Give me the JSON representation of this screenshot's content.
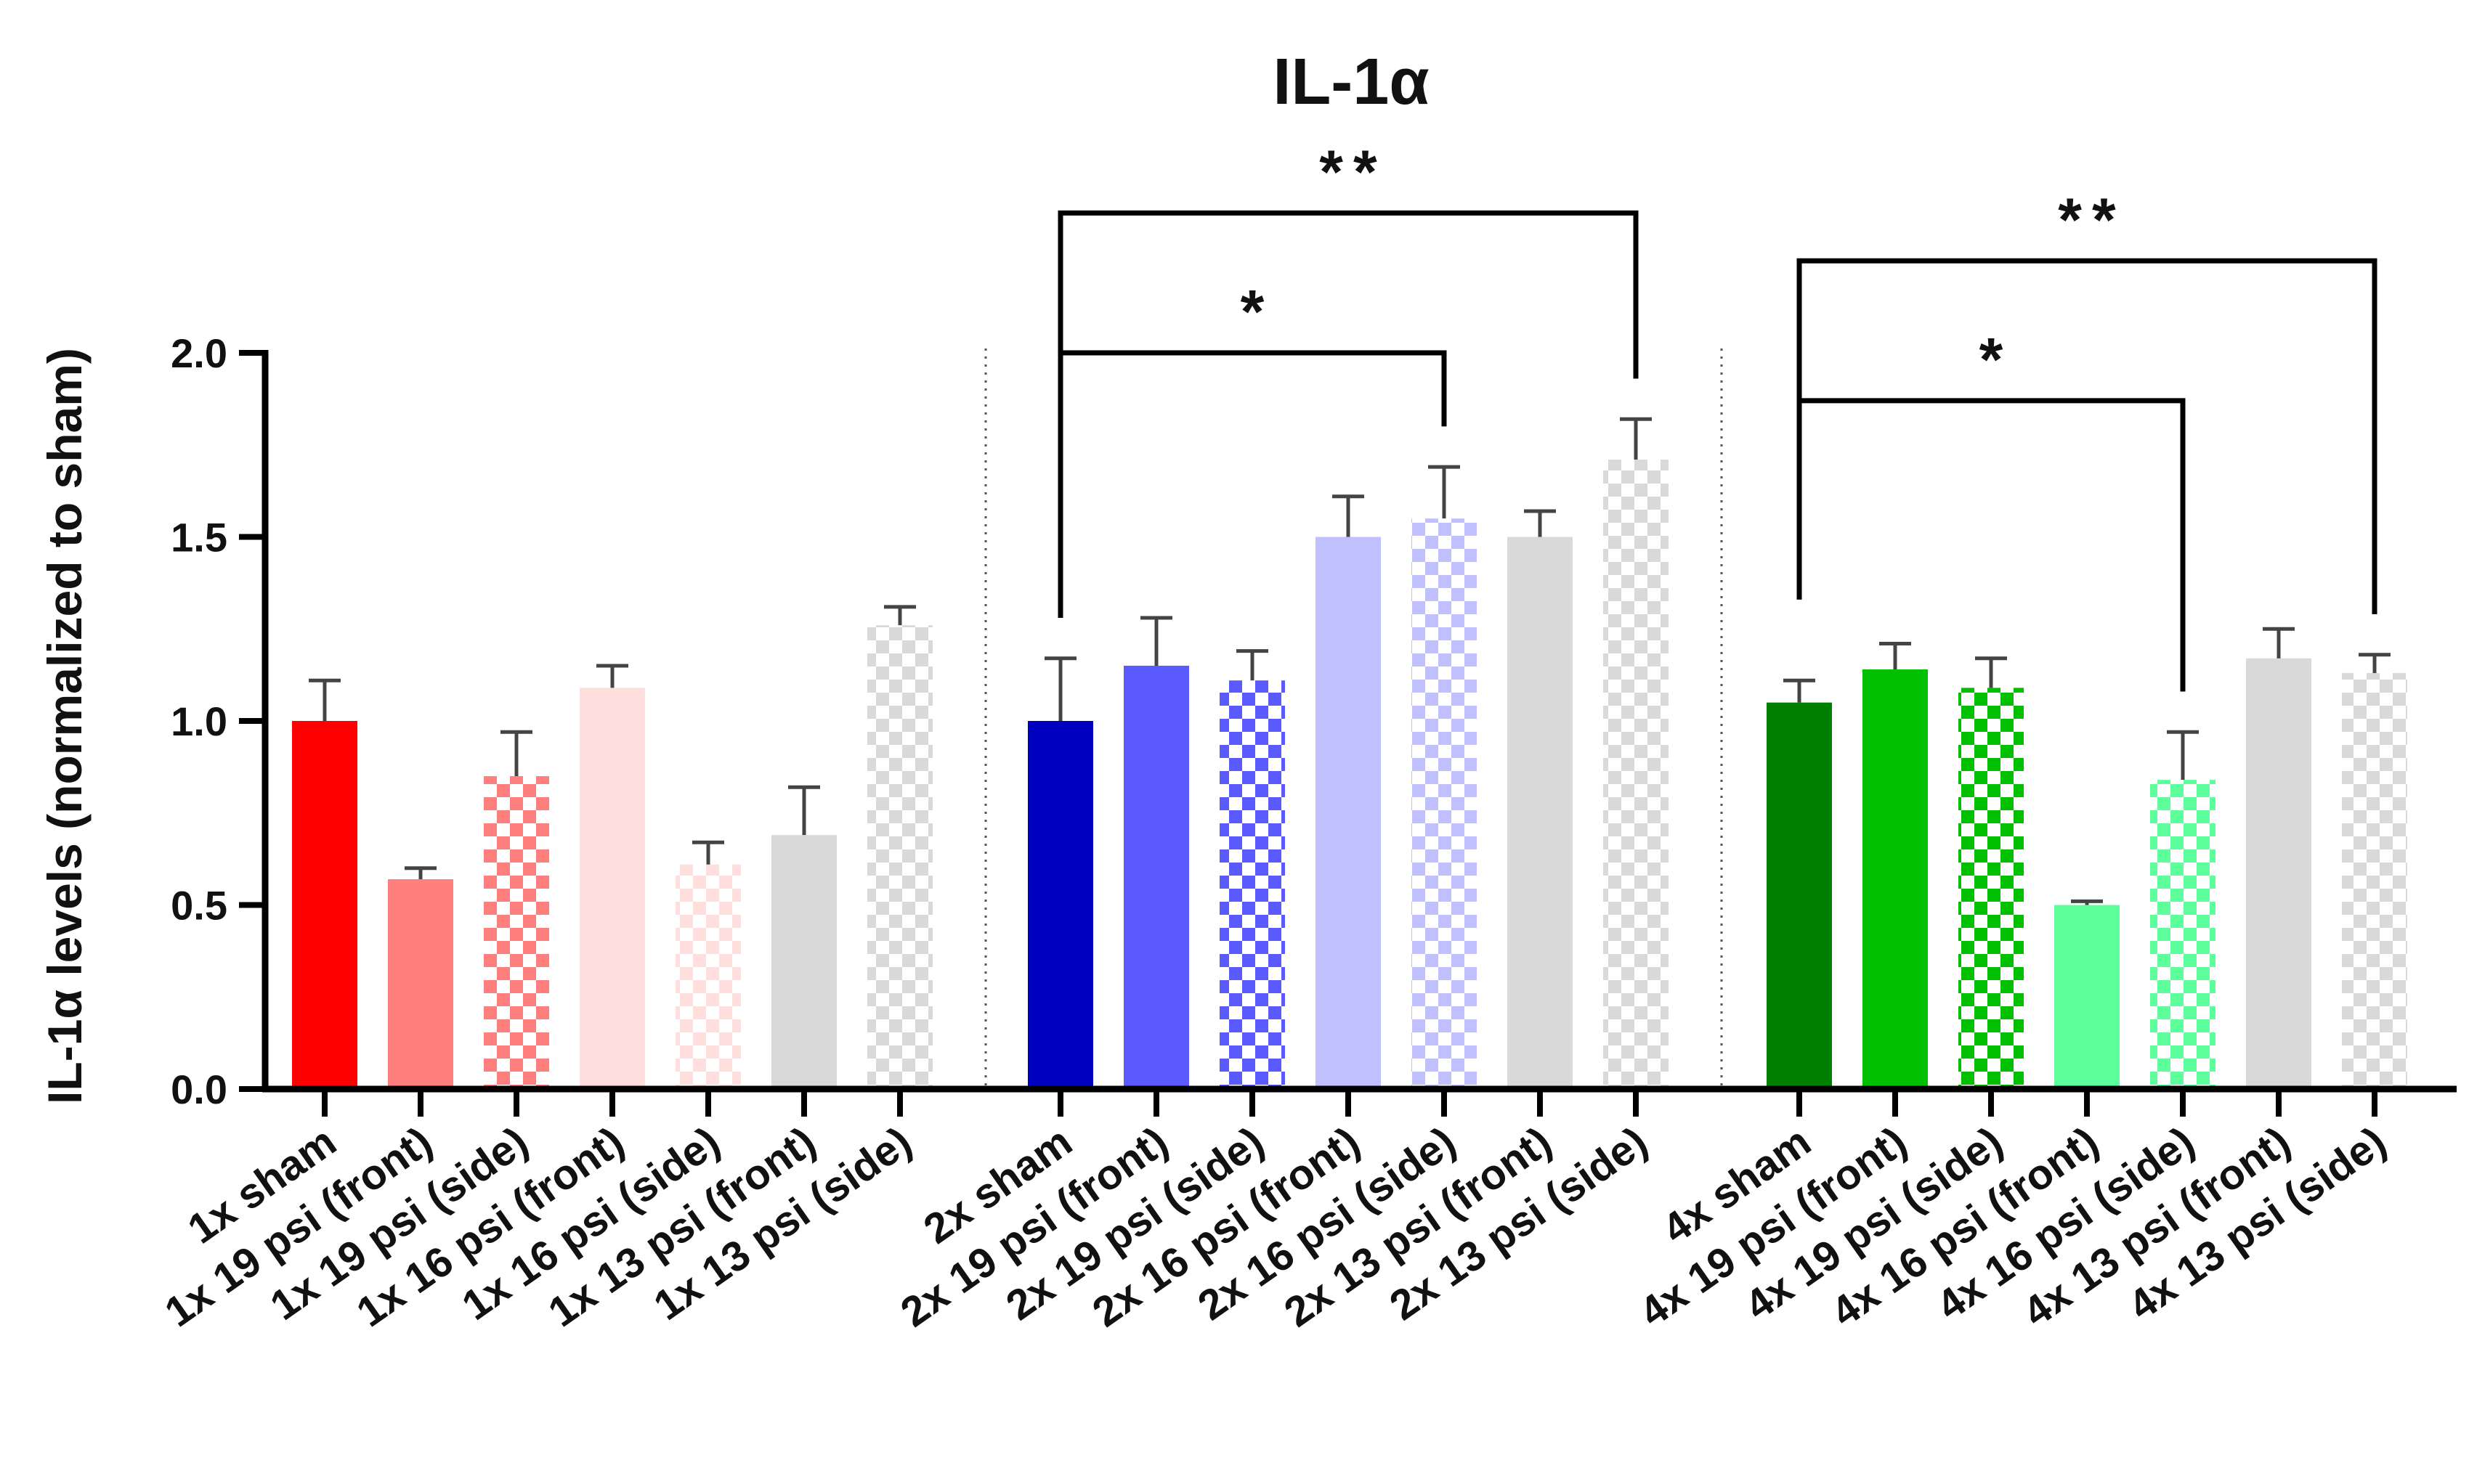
{
  "chart_data": {
    "type": "bar",
    "title": "IL-1α",
    "xlabel": "",
    "ylabel": "IL-1α levels (normalized to sham)",
    "ylim": [
      0,
      2.0
    ],
    "yticks": [
      0.0,
      0.5,
      1.0,
      1.5,
      2.0
    ],
    "ytick_labels": [
      "0.0",
      "0.5",
      "1.0",
      "1.5",
      "2.0"
    ],
    "grid": false,
    "groups": [
      {
        "name": "1x",
        "bars": [
          {
            "label": "1x sham",
            "value": 1.0,
            "error": 0.11,
            "color": "#ff0000",
            "pattern": "solid"
          },
          {
            "label": "1x 19 psi (front)",
            "value": 0.57,
            "error": 0.03,
            "color": "#ff7f7f",
            "pattern": "solid"
          },
          {
            "label": "1x 19 psi (side)",
            "value": 0.85,
            "error": 0.12,
            "color": "#ff7f7f",
            "pattern": "checker"
          },
          {
            "label": "1x 16 psi (front)",
            "value": 1.09,
            "error": 0.06,
            "color": "#ffdede",
            "pattern": "solid"
          },
          {
            "label": "1x 16 psi (side)",
            "value": 0.61,
            "error": 0.06,
            "color": "#ffdede",
            "pattern": "checker"
          },
          {
            "label": "1x 13 psi (front)",
            "value": 0.69,
            "error": 0.13,
            "color": "#d9d9d9",
            "pattern": "solid"
          },
          {
            "label": "1x 13 psi (side)",
            "value": 1.26,
            "error": 0.05,
            "color": "#d9d9d9",
            "pattern": "checker"
          }
        ]
      },
      {
        "name": "2x",
        "bars": [
          {
            "label": "2x sham",
            "value": 1.0,
            "error": 0.17,
            "color": "#0000c0",
            "pattern": "solid"
          },
          {
            "label": "2x 19 psi (front)",
            "value": 1.15,
            "error": 0.13,
            "color": "#5a5aff",
            "pattern": "solid"
          },
          {
            "label": "2x 19 psi (side)",
            "value": 1.11,
            "error": 0.08,
            "color": "#5a5aff",
            "pattern": "checker"
          },
          {
            "label": "2x 16 psi (front)",
            "value": 1.5,
            "error": 0.11,
            "color": "#c0c0ff",
            "pattern": "solid"
          },
          {
            "label": "2x 16 psi (side)",
            "value": 1.55,
            "error": 0.14,
            "color": "#c0c0ff",
            "pattern": "checker"
          },
          {
            "label": "2x 13 psi (front)",
            "value": 1.5,
            "error": 0.07,
            "color": "#d9d9d9",
            "pattern": "solid"
          },
          {
            "label": "2x 13 psi (side)",
            "value": 1.71,
            "error": 0.11,
            "color": "#d9d9d9",
            "pattern": "checker"
          }
        ]
      },
      {
        "name": "4x",
        "bars": [
          {
            "label": "4x sham",
            "value": 1.05,
            "error": 0.06,
            "color": "#008000",
            "pattern": "solid"
          },
          {
            "label": "4x 19 psi (front)",
            "value": 1.14,
            "error": 0.07,
            "color": "#00c000",
            "pattern": "solid"
          },
          {
            "label": "4x 19 psi (side)",
            "value": 1.09,
            "error": 0.08,
            "color": "#00c000",
            "pattern": "checker"
          },
          {
            "label": "4x 16 psi (front)",
            "value": 0.5,
            "error": 0.01,
            "color": "#5cff9c",
            "pattern": "solid"
          },
          {
            "label": "4x 16 psi (side)",
            "value": 0.84,
            "error": 0.13,
            "color": "#5cff9c",
            "pattern": "checker"
          },
          {
            "label": "4x 13 psi (front)",
            "value": 1.17,
            "error": 0.08,
            "color": "#d9d9d9",
            "pattern": "solid"
          },
          {
            "label": "4x 13 psi (side)",
            "value": 1.13,
            "error": 0.05,
            "color": "#d9d9d9",
            "pattern": "checker"
          }
        ]
      }
    ],
    "annotations": [
      {
        "from": "2x sham",
        "to": "2x 16 psi (side)",
        "label": "*",
        "level": 2.0
      },
      {
        "from": "2x sham",
        "to": "2x 13 psi (side)",
        "label": "**",
        "level": 2.38
      },
      {
        "from": "4x sham",
        "to": "4x 16 psi (side)",
        "label": "*",
        "level": 1.87
      },
      {
        "from": "4x sham",
        "to": "4x 13 psi (side)",
        "label": "**",
        "level": 2.25
      }
    ]
  }
}
